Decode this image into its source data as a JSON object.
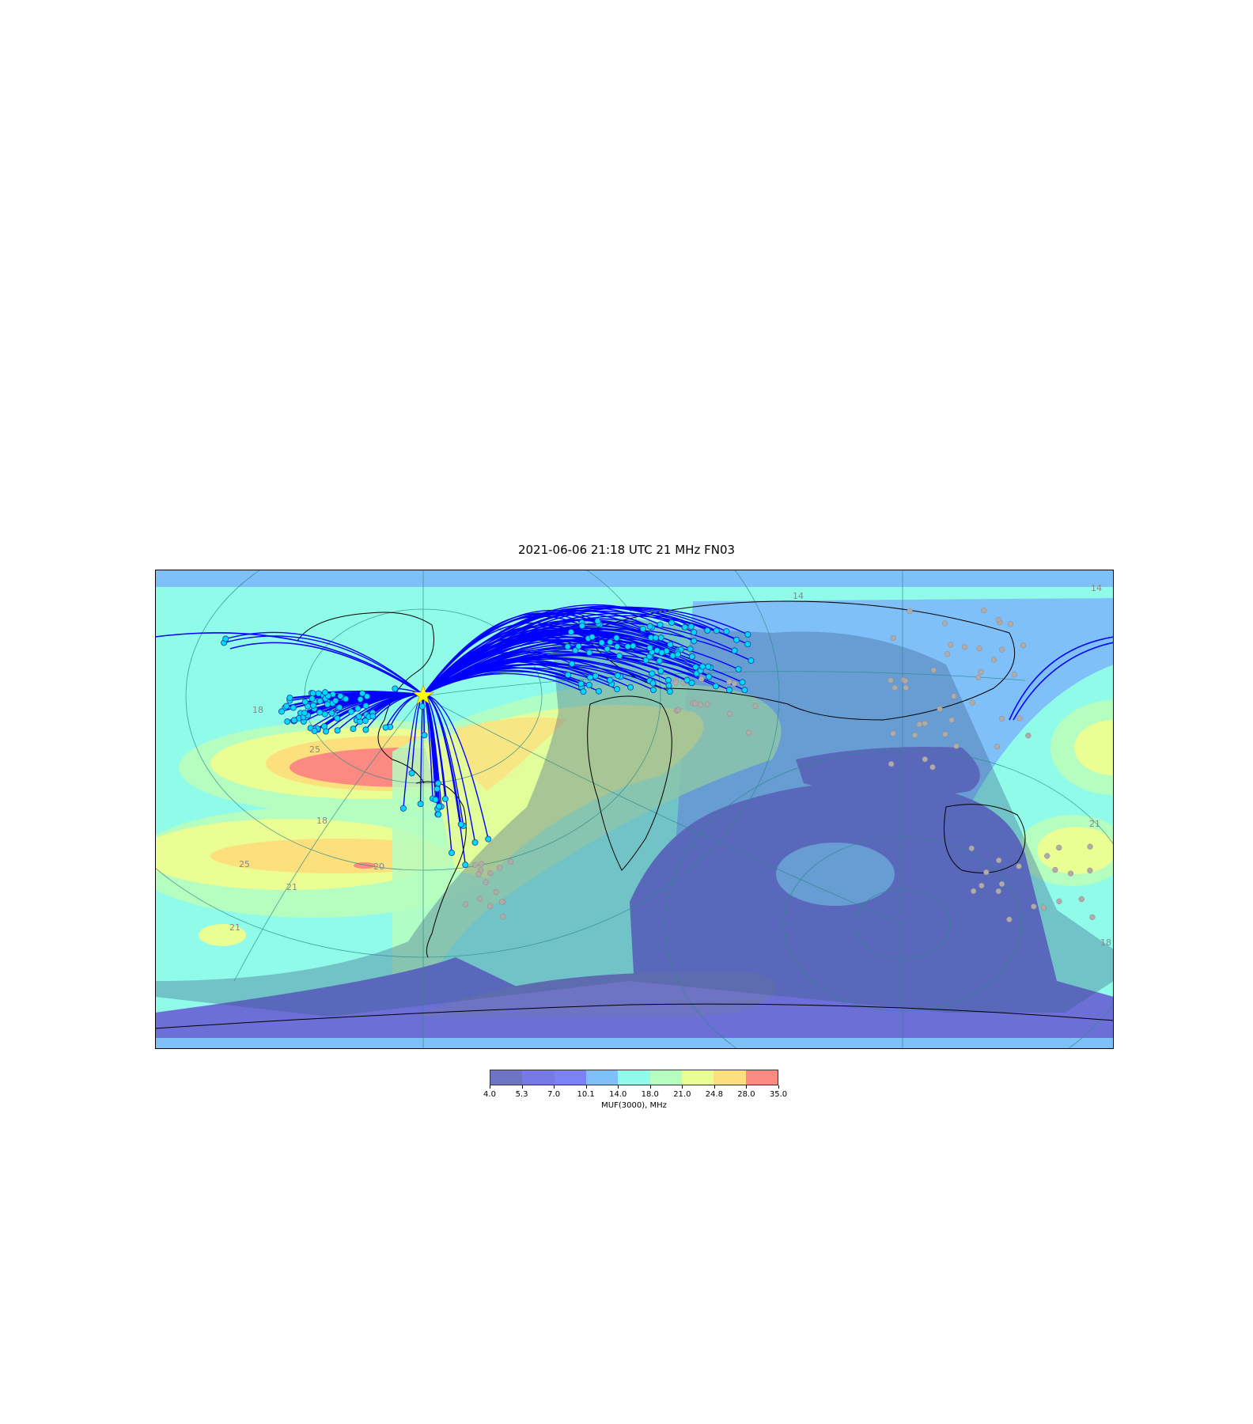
{
  "title": "2021-06-06 21:18 UTC  21 MHz  FN03",
  "colorbar": {
    "ticks": [
      "4.0",
      "5.3",
      "7.0",
      "10.1",
      "14.0",
      "18.0",
      "21.0",
      "24.8",
      "28.0",
      "35.0"
    ],
    "colors": [
      "#6f73c4",
      "#7679e6",
      "#7a82f5",
      "#7fc0f9",
      "#8ffbe8",
      "#b6fdc0",
      "#eafe93",
      "#fde07e",
      "#fb8a82"
    ],
    "label": "MUF(3000), MHz"
  },
  "map": {
    "colors": {
      "muf_4": "#6f73c4",
      "muf_5": "#6b6fd6",
      "muf_10": "#7fc0f9",
      "muf_14": "#8ffbe8",
      "muf_18": "#b6fdc0",
      "muf_21": "#eafe93",
      "muf_25": "#fde07e",
      "muf_28": "#fb8a82",
      "night_shade": "#3b5b8a",
      "path_line": "#0000ff",
      "spot_fill": "#00d8ff",
      "spot_stroke": "#1a3fa0",
      "other_spot": "#b0aaa8",
      "coast": "#000000",
      "grid": "#2a8a8a",
      "tx_star": "#ffff00"
    },
    "contour_labels": [
      "14",
      "14",
      "18",
      "25",
      "18",
      "25",
      "21",
      "21",
      "21",
      "18",
      "20"
    ],
    "transmitter": "FN03"
  }
}
